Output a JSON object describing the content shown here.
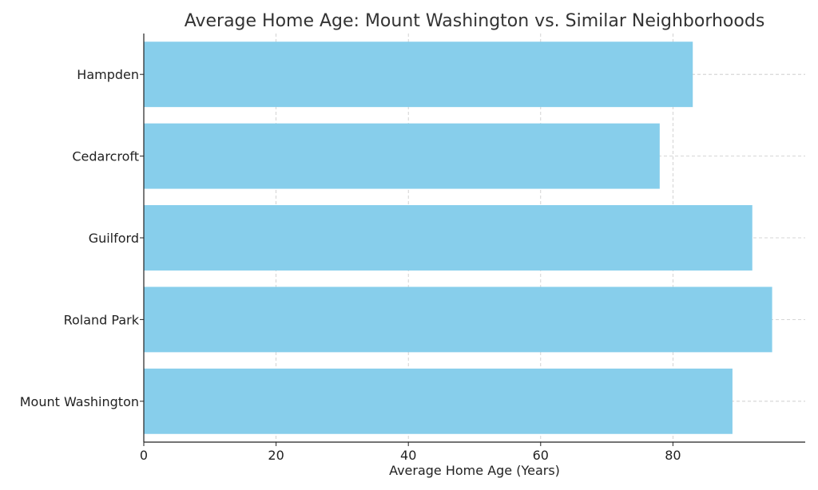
{
  "chart_data": {
    "type": "bar",
    "orientation": "horizontal",
    "title": "Average Home Age: Mount Washington vs. Similar Neighborhoods",
    "xlabel": "Average Home Age (Years)",
    "ylabel": "",
    "categories": [
      "Mount Washington",
      "Roland Park",
      "Guilford",
      "Cedarcroft",
      "Hampden"
    ],
    "values": [
      89,
      95,
      92,
      78,
      83
    ],
    "xlim": [
      0,
      100
    ],
    "xticks": [
      0,
      20,
      40,
      60,
      80
    ],
    "grid": true,
    "bar_color": "#87CEEB"
  }
}
